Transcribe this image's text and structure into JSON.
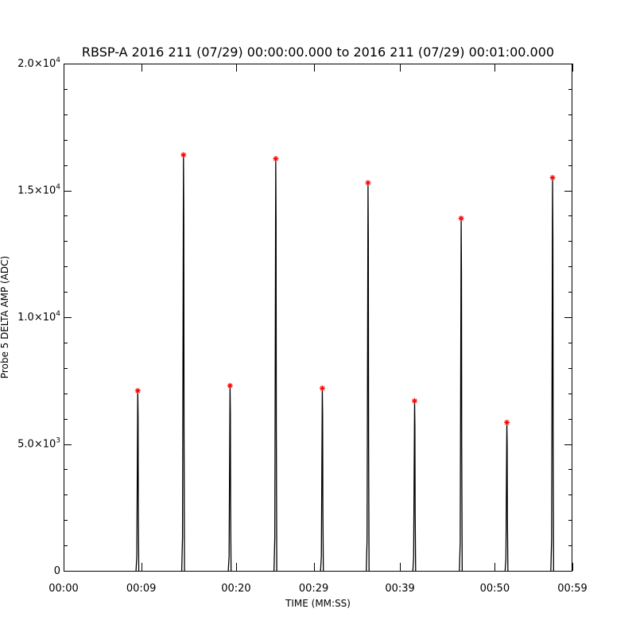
{
  "chart_data": {
    "type": "line",
    "title": "RBSP-A 2016 211 (07/29) 00:00:00.000 to 2016 211 (07/29) 00:01:00.000",
    "xlabel": "TIME (MM:SS)",
    "ylabel": "Probe 5 DELTA AMP (ADC)",
    "xlim": [
      0,
      59
    ],
    "ylim": [
      0,
      20000
    ],
    "x_ticks": [
      {
        "value": 0,
        "label": "00:00"
      },
      {
        "value": 9,
        "label": "00:09"
      },
      {
        "value": 20,
        "label": "00:20"
      },
      {
        "value": 29,
        "label": "00:29"
      },
      {
        "value": 39,
        "label": "00:39"
      },
      {
        "value": 50,
        "label": "00:50"
      },
      {
        "value": 59,
        "label": "00:59"
      }
    ],
    "y_ticks": [
      {
        "value": 0,
        "mantissa": "0",
        "exp": ""
      },
      {
        "value": 5000,
        "mantissa": "5.0×10",
        "exp": "3"
      },
      {
        "value": 10000,
        "mantissa": "1.0×10",
        "exp": "4"
      },
      {
        "value": 15000,
        "mantissa": "1.5×10",
        "exp": "4"
      },
      {
        "value": 20000,
        "mantissa": "2.0×10",
        "exp": "4"
      }
    ],
    "series": [
      {
        "color": "#000000",
        "pulses": [
          {
            "t": 8.6,
            "peak": 7100
          },
          {
            "t": 13.9,
            "peak": 16400
          },
          {
            "t": 19.3,
            "peak": 7300
          },
          {
            "t": 24.6,
            "peak": 16250
          },
          {
            "t": 30.0,
            "peak": 7200
          },
          {
            "t": 35.3,
            "peak": 15300
          },
          {
            "t": 40.7,
            "peak": 6700
          },
          {
            "t": 46.1,
            "peak": 13900
          },
          {
            "t": 51.4,
            "peak": 5850
          },
          {
            "t": 56.7,
            "peak": 15500
          }
        ]
      },
      {
        "marker": "*",
        "color": "#ff0000",
        "points": [
          {
            "x": 8.6,
            "y": 7100
          },
          {
            "x": 13.9,
            "y": 16400
          },
          {
            "x": 19.3,
            "y": 7300
          },
          {
            "x": 24.6,
            "y": 16250
          },
          {
            "x": 30.0,
            "y": 7200
          },
          {
            "x": 35.3,
            "y": 15300
          },
          {
            "x": 40.7,
            "y": 6700
          },
          {
            "x": 46.1,
            "y": 13900
          },
          {
            "x": 51.4,
            "y": 5850
          },
          {
            "x": 56.7,
            "y": 15500
          }
        ]
      }
    ],
    "grid": false
  }
}
